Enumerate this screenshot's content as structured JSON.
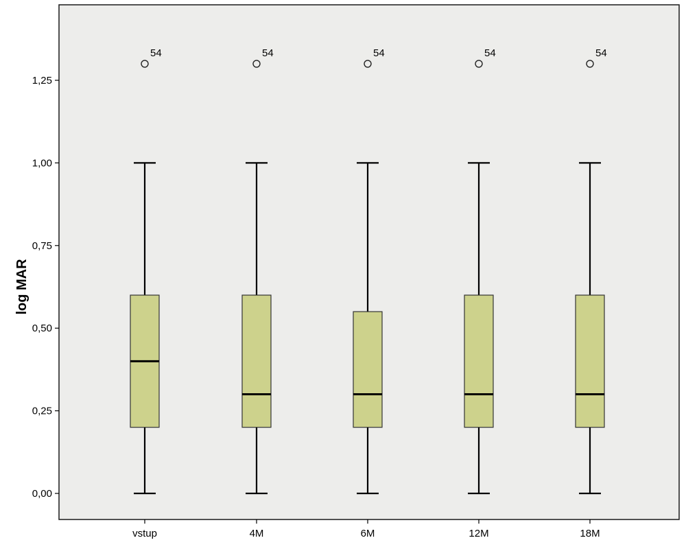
{
  "chart_data": {
    "type": "boxplot",
    "title": "",
    "xlabel": "",
    "ylabel": "log MAR",
    "ylim": [
      0,
      1.4
    ],
    "y_ticks": [
      0.0,
      0.25,
      0.5,
      0.75,
      1.0,
      1.25
    ],
    "y_tick_labels": [
      "0,00",
      "0,25",
      "0,50",
      "0,75",
      "1,00",
      "1,25"
    ],
    "grid": false,
    "colors": {
      "box_fill": "#cdd28c",
      "plot_bg": "#ededeb",
      "stroke": "#000000"
    },
    "categories": [
      "vstup",
      "4M",
      "6M",
      "12M",
      "18M"
    ],
    "boxes": [
      {
        "category": "vstup",
        "whisker_low": 0.0,
        "q1": 0.2,
        "median": 0.4,
        "q3": 0.6,
        "whisker_high": 1.0,
        "outliers": [
          {
            "value": 1.3,
            "label": "54"
          }
        ]
      },
      {
        "category": "4M",
        "whisker_low": 0.0,
        "q1": 0.2,
        "median": 0.3,
        "q3": 0.6,
        "whisker_high": 1.0,
        "outliers": [
          {
            "value": 1.3,
            "label": "54"
          }
        ]
      },
      {
        "category": "6M",
        "whisker_low": 0.0,
        "q1": 0.2,
        "median": 0.3,
        "q3": 0.55,
        "whisker_high": 1.0,
        "outliers": [
          {
            "value": 1.3,
            "label": "54"
          }
        ]
      },
      {
        "category": "12M",
        "whisker_low": 0.0,
        "q1": 0.2,
        "median": 0.3,
        "q3": 0.6,
        "whisker_high": 1.0,
        "outliers": [
          {
            "value": 1.3,
            "label": "54"
          }
        ]
      },
      {
        "category": "18M",
        "whisker_low": 0.0,
        "q1": 0.2,
        "median": 0.3,
        "q3": 0.6,
        "whisker_high": 1.0,
        "outliers": [
          {
            "value": 1.3,
            "label": "54"
          }
        ]
      }
    ]
  }
}
